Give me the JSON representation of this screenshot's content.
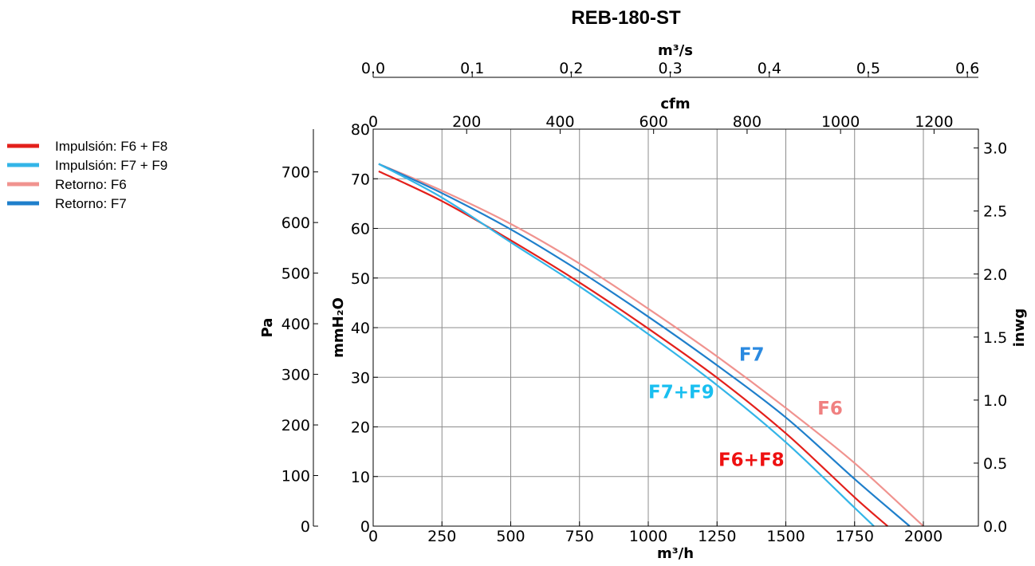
{
  "chart_data": {
    "type": "line",
    "title": "REB-180-ST",
    "xlabel": "m³/h",
    "x_top_label": "cfm",
    "x_top2_label": "m³/s",
    "ylabel_left_outer": "Pa",
    "ylabel_left_inner": "mmH₂O",
    "ylabel_right": "inwg",
    "xlim": [
      0,
      2200
    ],
    "ylim_mmh2o": [
      0,
      80
    ],
    "x_ticks": [
      "0",
      "250",
      "500",
      "750",
      "1000",
      "1250",
      "1500",
      "1750",
      "2000"
    ],
    "cfm_ticks": [
      "0",
      "200",
      "400",
      "600",
      "800",
      "1000",
      "1200"
    ],
    "m3s_ticks": [
      "0.0",
      "0.1",
      "0.2",
      "0.3",
      "0.4",
      "0.5",
      "0.6"
    ],
    "y_mmh2o_ticks": [
      "0",
      "10",
      "20",
      "30",
      "40",
      "50",
      "60",
      "70",
      "80"
    ],
    "y_pa_ticks": [
      "0",
      "100",
      "200",
      "300",
      "400",
      "500",
      "600",
      "700"
    ],
    "y_inwg_ticks": [
      "0.0",
      "0.5",
      "1.0",
      "1.5",
      "2.0",
      "2.5",
      "3.0"
    ],
    "grid": true,
    "legend_position": "left",
    "series": [
      {
        "name": "Impulsión: F6 + F8",
        "color": "#e3201b",
        "label": "F6+F8",
        "x": [
          20,
          250,
          500,
          750,
          1000,
          1250,
          1500,
          1750,
          1870
        ],
        "y": [
          71.5,
          65.5,
          57.6,
          49.1,
          39.8,
          29.9,
          18.7,
          5.8,
          0
        ]
      },
      {
        "name": "Impulsión: F7 + F9",
        "color": "#33b5e8",
        "label": "F7+F9",
        "x": [
          20,
          250,
          500,
          750,
          1000,
          1250,
          1500,
          1750,
          1820
        ],
        "y": [
          73,
          66.2,
          57.2,
          48.3,
          38.7,
          28.4,
          16.9,
          3.7,
          0
        ]
      },
      {
        "name": "Retorno: F6",
        "color": "#f0938f",
        "label": "F6",
        "x": [
          20,
          250,
          500,
          750,
          1000,
          1250,
          1500,
          1750,
          2000
        ],
        "y": [
          73,
          67.6,
          60.9,
          52.9,
          43.8,
          34.2,
          23.8,
          12.7,
          0
        ]
      },
      {
        "name": "Retorno: F7",
        "color": "#1f7fcb",
        "label": "F7",
        "x": [
          20,
          250,
          500,
          750,
          1000,
          1250,
          1500,
          1750,
          1950
        ],
        "y": [
          73,
          67.1,
          59.8,
          51.4,
          42.2,
          32.4,
          21.9,
          9.5,
          0
        ]
      }
    ],
    "annotations": [
      {
        "text": "F7",
        "color": "#2b8ae0",
        "x": 1330,
        "y": 33.3
      },
      {
        "text": "F7+F9",
        "color": "#19bff0",
        "x": 1000,
        "y": 25.8
      },
      {
        "text": "F6",
        "color": "#f08080",
        "x": 1615,
        "y": 22.5
      },
      {
        "text": "F6+F8",
        "color": "#ee1111",
        "x": 1255,
        "y": 12.1
      }
    ]
  }
}
